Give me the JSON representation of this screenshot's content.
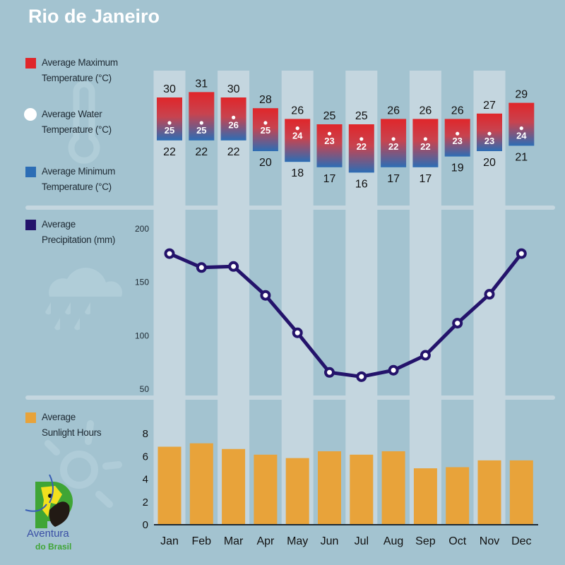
{
  "title": "Rio de Janeiro",
  "colors": {
    "background": "#a3c3d0",
    "band_light": "#c4d6df",
    "max_temp": "#e0262a",
    "min_temp": "#2c6db5",
    "water": "#ffffff",
    "precip": "#24136b",
    "sunlight": "#e8a33a"
  },
  "legend": {
    "max_temp": "Average Maximum\nTemperature (°C)",
    "water_temp": "Average Water\nTemperature (°C)",
    "min_temp": "Average Minimum\nTemperature (°C)",
    "precip": "Average\nPrecipitation (mm)",
    "sunlight": "Average\nSunlight Hours"
  },
  "icons": [
    "thermometer-icon",
    "rain-cloud-icon",
    "sun-icon",
    "aventura-do-brasil-logo"
  ],
  "logo": {
    "line1": "Aventura",
    "line2": "do Brasil"
  },
  "chart_data": [
    {
      "type": "bar",
      "subtype": "range",
      "categories": [
        "Jan",
        "Feb",
        "Mar",
        "Apr",
        "May",
        "Jun",
        "Jul",
        "Aug",
        "Sep",
        "Oct",
        "Nov",
        "Dec"
      ],
      "series": [
        {
          "name": "Average Maximum Temperature (°C)",
          "values": [
            30,
            31,
            30,
            28,
            26,
            25,
            25,
            26,
            26,
            26,
            27,
            29
          ]
        },
        {
          "name": "Average Water Temperature (°C)",
          "values": [
            25,
            25,
            26,
            25,
            24,
            23,
            22,
            22,
            22,
            23,
            23,
            24
          ]
        },
        {
          "name": "Average Minimum Temperature (°C)",
          "values": [
            22,
            22,
            22,
            20,
            18,
            17,
            16,
            17,
            17,
            19,
            20,
            21
          ]
        }
      ]
    },
    {
      "type": "line",
      "categories": [
        "Jan",
        "Feb",
        "Mar",
        "Apr",
        "May",
        "Jun",
        "Jul",
        "Aug",
        "Sep",
        "Oct",
        "Nov",
        "Dec"
      ],
      "series": [
        {
          "name": "Average Precipitation (mm)",
          "values": [
            176,
            163,
            164,
            137,
            102,
            65,
            61,
            67,
            81,
            111,
            138,
            176
          ]
        }
      ],
      "yticks": [
        50,
        100,
        150,
        200
      ],
      "ylim": [
        50,
        200
      ]
    },
    {
      "type": "bar",
      "categories": [
        "Jan",
        "Feb",
        "Mar",
        "Apr",
        "May",
        "Jun",
        "Jul",
        "Aug",
        "Sep",
        "Oct",
        "Nov",
        "Dec"
      ],
      "series": [
        {
          "name": "Average Sunlight Hours",
          "values": [
            6.8,
            7.1,
            6.6,
            6.1,
            5.8,
            6.4,
            6.1,
            6.4,
            4.9,
            5.0,
            5.6,
            5.6
          ]
        }
      ],
      "yticks": [
        0,
        2,
        4,
        6,
        8
      ],
      "ylim": [
        0,
        8
      ]
    }
  ]
}
